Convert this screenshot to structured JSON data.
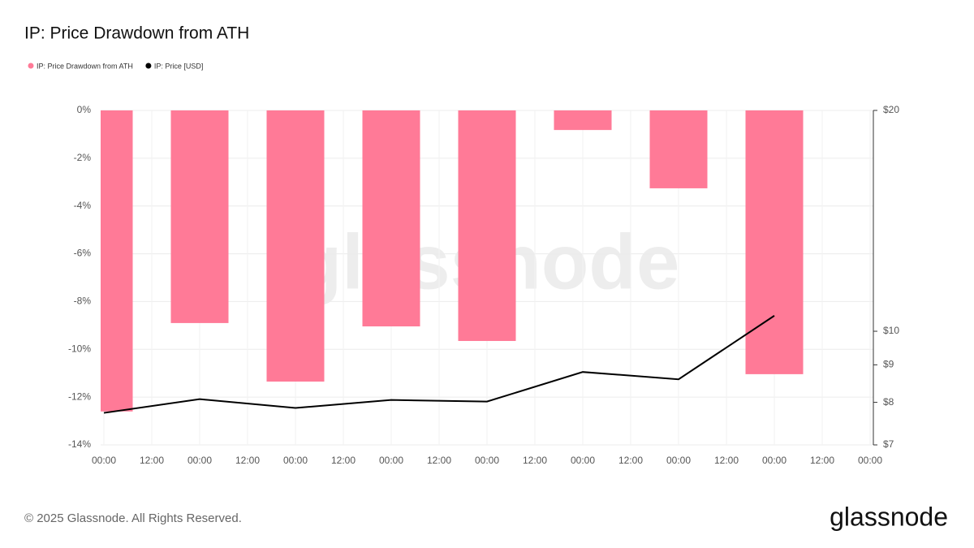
{
  "chart_data": {
    "type": "bar-line",
    "title": "IP: Price Drawdown from ATH",
    "watermark": "glassnode",
    "copyright": "© 2025 Glassnode. All Rights Reserved.",
    "logo": "glassnode",
    "legend": "top-left",
    "grid": true,
    "x": [
      0,
      24,
      48,
      72,
      96,
      120,
      144,
      168
    ],
    "xlim": [
      0,
      192
    ],
    "xticks": [
      {
        "value": 0,
        "label": "00:00"
      },
      {
        "value": 12,
        "label": "12:00"
      },
      {
        "value": 24,
        "label": "00:00"
      },
      {
        "value": 36,
        "label": "12:00"
      },
      {
        "value": 48,
        "label": "00:00"
      },
      {
        "value": 60,
        "label": "12:00"
      },
      {
        "value": 72,
        "label": "00:00"
      },
      {
        "value": 84,
        "label": "12:00"
      },
      {
        "value": 96,
        "label": "00:00"
      },
      {
        "value": 108,
        "label": "12:00"
      },
      {
        "value": 120,
        "label": "00:00"
      },
      {
        "value": 132,
        "label": "12:00"
      },
      {
        "value": 144,
        "label": "00:00"
      },
      {
        "value": 156,
        "label": "12:00"
      },
      {
        "value": 168,
        "label": "00:00"
      },
      {
        "value": 180,
        "label": "12:00"
      },
      {
        "value": 192,
        "label": "00:00"
      }
    ],
    "ylim": [
      -14,
      0
    ],
    "yticks": [
      {
        "value": 0,
        "label": "0%"
      },
      {
        "value": -2,
        "label": "-2%"
      },
      {
        "value": -4,
        "label": "-4%"
      },
      {
        "value": -6,
        "label": "-6%"
      },
      {
        "value": -8,
        "label": "-8%"
      },
      {
        "value": -10,
        "label": "-10%"
      },
      {
        "value": -12,
        "label": "-12%"
      },
      {
        "value": -14,
        "label": "-14%"
      }
    ],
    "y2lim": [
      7,
      20
    ],
    "y2log": true,
    "y2ticks": [
      {
        "value": 20,
        "label": "$20"
      },
      {
        "value": 10,
        "label": "$10"
      },
      {
        "value": 9,
        "label": "$9"
      },
      {
        "value": 8,
        "label": "$8"
      },
      {
        "value": 7,
        "label": "$7"
      }
    ],
    "series": [
      {
        "name": "IP: Price Drawdown from ATH",
        "type": "bar",
        "color": "#ff7a97",
        "values": [
          -12.6,
          -8.9,
          -11.35,
          -9.04,
          -9.65,
          -0.82,
          -3.26,
          -11.04
        ]
      },
      {
        "name": "IP: Price [USD]",
        "type": "line",
        "axis": "y2",
        "color": "#000000",
        "values": [
          7.74,
          8.08,
          7.86,
          8.06,
          8.02,
          8.8,
          8.6,
          10.5
        ]
      }
    ]
  }
}
